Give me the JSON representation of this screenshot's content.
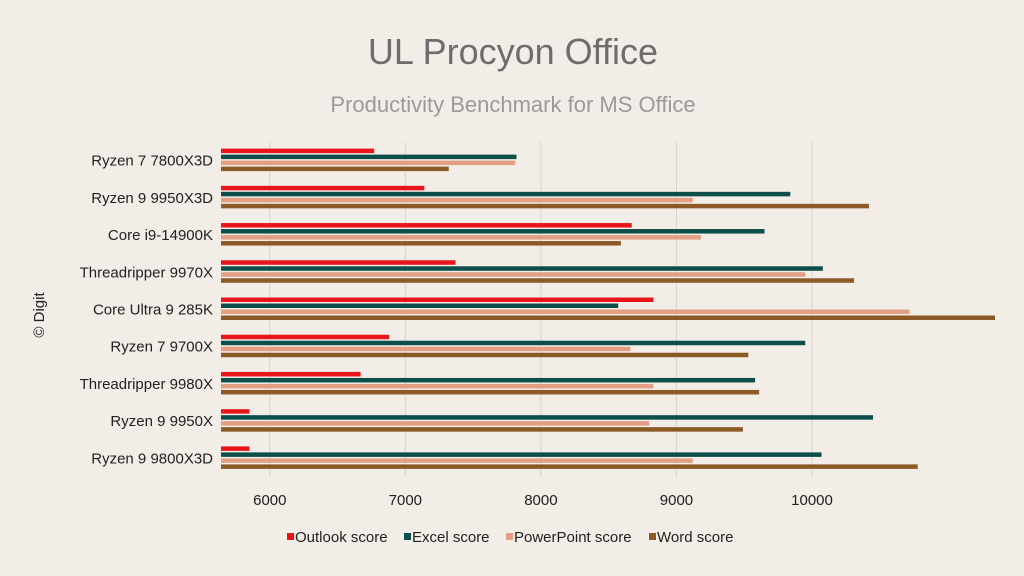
{
  "chart_data": {
    "type": "bar",
    "orientation": "horizontal",
    "title": "UL Procyon Office",
    "subtitle": "Productivity Benchmark for MS Office",
    "watermark": "© Digit",
    "categories": [
      "Ryzen 7 7800X3D",
      "Ryzen 9 9950X3D",
      "Core i9-14900K",
      "Threadripper 9970X",
      "Core Ultra 9 285K",
      "Ryzen 7 9700X",
      "Threadripper 9980X",
      "Ryzen 9 9950X",
      "Ryzen 9 9800X3D"
    ],
    "series": [
      {
        "name": "Outlook score",
        "color": "#e8161a",
        "values": [
          6770,
          7140,
          8670,
          7370,
          8830,
          6880,
          6670,
          5850,
          5850
        ]
      },
      {
        "name": "Excel score",
        "color": "#0c4f4a",
        "values": [
          7820,
          9840,
          9650,
          10080,
          8570,
          9950,
          9580,
          10450,
          10070
        ]
      },
      {
        "name": "PowerPoint score",
        "color": "#e29f83",
        "values": [
          7810,
          9120,
          9180,
          9950,
          10720,
          8660,
          8830,
          8800,
          9120
        ]
      },
      {
        "name": "Word score",
        "color": "#8c5a26",
        "values": [
          7320,
          10420,
          8590,
          10310,
          11350,
          9530,
          9610,
          9490,
          10780
        ]
      }
    ],
    "xaxis": {
      "min": 5640,
      "max": 11350,
      "ticks": [
        6000,
        7000,
        8000,
        9000,
        10000
      ],
      "tick_labels": [
        "6000",
        "7000",
        "8000",
        "9000",
        "10000"
      ]
    },
    "grid": true,
    "legend": "bottom"
  }
}
